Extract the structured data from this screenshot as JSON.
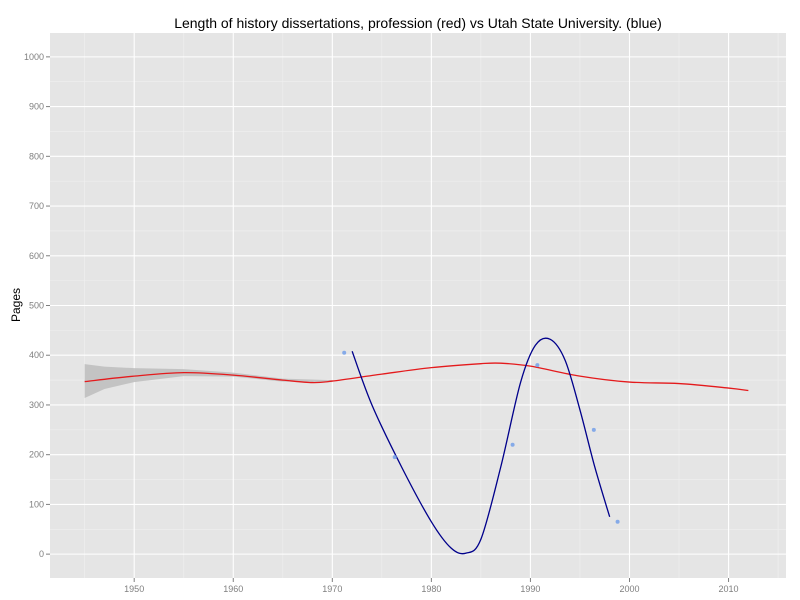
{
  "chart_data": {
    "type": "scatter",
    "title": "Length of history dissertations, profession (red) vs Utah State University. (blue)",
    "xlabel": "",
    "ylabel": "Pages",
    "xlim": [
      1941.5,
      2015.8
    ],
    "ylim": [
      -48,
      1048
    ],
    "x_ticks": [
      1950,
      1960,
      1970,
      1980,
      1990,
      2000,
      2010
    ],
    "y_ticks": [
      0,
      100,
      200,
      300,
      400,
      500,
      600,
      700,
      800,
      900,
      1000
    ],
    "grid": true,
    "legend": "none",
    "colors": {
      "panel": "#e5e5e5",
      "grid_major": "#ffffff",
      "grid_minor": "#f0f0f0",
      "profession": "#e41a1c",
      "usu_line": "#00008b",
      "usu_points": "#7aa3e8",
      "ribbon": "#bdbdbd"
    },
    "series": [
      {
        "kind": "smooth",
        "color_key": "profession",
        "x": [
          1945,
          1950,
          1955,
          1960,
          1965,
          1968,
          1970,
          1975,
          1980,
          1985,
          1987,
          1990,
          1995,
          2000,
          2005,
          2010,
          2012
        ],
        "y": [
          347,
          358,
          365,
          360,
          350,
          345,
          348,
          362,
          375,
          383,
          384,
          378,
          358,
          346,
          343,
          334,
          329
        ]
      },
      {
        "kind": "ribbon",
        "color_key": "ribbon",
        "x": [
          1945,
          1947,
          1950,
          1955,
          1960,
          1965,
          1970
        ],
        "upper": [
          382,
          377,
          374,
          372,
          365,
          353,
          350
        ],
        "lower": [
          314,
          332,
          346,
          358,
          357,
          347,
          346
        ]
      },
      {
        "kind": "smooth",
        "color_key": "usu_line",
        "x": [
          1972,
          1974,
          1977,
          1980,
          1982,
          1983.5,
          1985,
          1987,
          1989,
          1990.5,
          1992,
          1993.5,
          1995,
          1996.5,
          1998
        ],
        "y": [
          408,
          300,
          175,
          65,
          12,
          2,
          30,
          175,
          345,
          420,
          432,
          390,
          290,
          175,
          75
        ]
      },
      {
        "kind": "points",
        "color_key": "usu_points",
        "x": [
          1971.2,
          1976.3,
          1988.2,
          1990.7,
          1996.4,
          1998.8
        ],
        "y": [
          405,
          195,
          220,
          380,
          250,
          65
        ]
      }
    ]
  }
}
